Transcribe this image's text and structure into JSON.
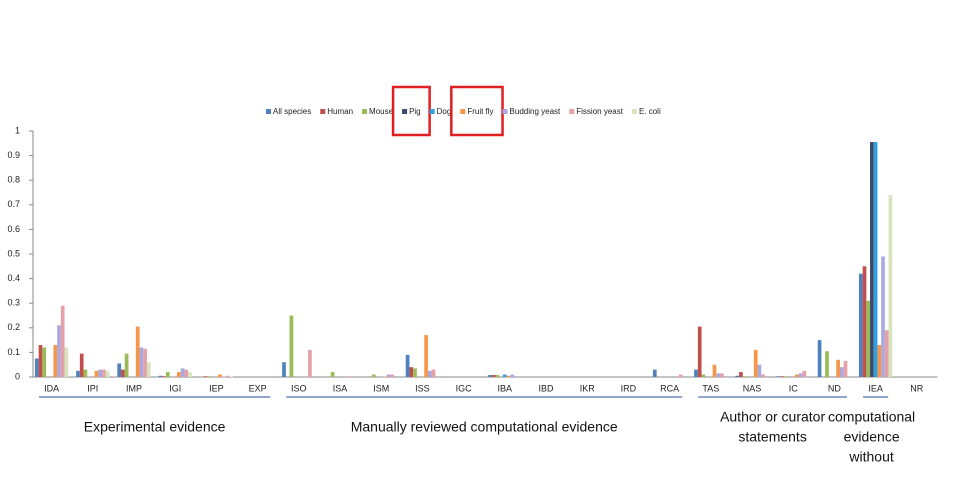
{
  "chart_data": {
    "type": "bar",
    "categories": [
      "IDA",
      "IPI",
      "IMP",
      "IGI",
      "IEP",
      "EXP",
      "ISO",
      "ISA",
      "ISM",
      "ISS",
      "IGC",
      "IBA",
      "IBD",
      "IKR",
      "IRD",
      "RCA",
      "TAS",
      "NAS",
      "IC",
      "ND",
      "IEA",
      "NR"
    ],
    "series": [
      {
        "name": "All species",
        "color": "#4f81bd",
        "values": [
          0.075,
          0.025,
          0.055,
          0.005,
          0,
          0,
          0.06,
          0,
          0,
          0.09,
          0,
          0.008,
          0,
          0,
          0,
          0.03,
          0.03,
          0.005,
          0.003,
          0.15,
          0.42,
          0
        ]
      },
      {
        "name": "Human",
        "color": "#c0504d",
        "values": [
          0.13,
          0.095,
          0.03,
          0.003,
          0.003,
          0,
          0,
          0,
          0,
          0.04,
          0,
          0.008,
          0,
          0,
          0,
          0,
          0.205,
          0.02,
          0.003,
          0,
          0.45,
          0
        ]
      },
      {
        "name": "Mouse",
        "color": "#9bbb59",
        "values": [
          0.12,
          0.03,
          0.095,
          0.02,
          0.003,
          0,
          0.25,
          0.02,
          0.01,
          0.035,
          0,
          0.008,
          0,
          0,
          0,
          0,
          0.01,
          0.003,
          0.003,
          0.105,
          0.31,
          0
        ]
      },
      {
        "name": "Pig",
        "color": "#3b4a6b",
        "highlight": true,
        "values": [
          0,
          0,
          0,
          0,
          0,
          0,
          0,
          0,
          0,
          0,
          0,
          0,
          0,
          0,
          0,
          0,
          0,
          0,
          0,
          0,
          0.955,
          0
        ]
      },
      {
        "name": "Dog",
        "color": "#2f9fe0",
        "values": [
          0,
          0,
          0,
          0,
          0,
          0,
          0,
          0,
          0,
          0,
          0,
          0.01,
          0,
          0,
          0,
          0,
          0,
          0,
          0,
          0,
          0.955,
          0
        ]
      },
      {
        "name": "Fruit fly",
        "color": "#f79646",
        "highlight": true,
        "values": [
          0.13,
          0.025,
          0.205,
          0.02,
          0.01,
          0,
          0,
          0,
          0.002,
          0.17,
          0,
          0.005,
          0,
          0,
          0,
          0,
          0.05,
          0.11,
          0.01,
          0.07,
          0.13,
          0
        ]
      },
      {
        "name": "Budding yeast",
        "color": "#a9a9e0",
        "values": [
          0.21,
          0.03,
          0.12,
          0.035,
          0.002,
          0,
          0,
          0,
          0.01,
          0.025,
          0,
          0.01,
          0,
          0,
          0,
          0,
          0.015,
          0.05,
          0.015,
          0.04,
          0.49,
          0
        ]
      },
      {
        "name": "Fission yeast",
        "color": "#e6a0a8",
        "values": [
          0.29,
          0.03,
          0.115,
          0.03,
          0.005,
          0,
          0.11,
          0.003,
          0.01,
          0.03,
          0,
          0,
          0,
          0,
          0,
          0.01,
          0.015,
          0.01,
          0.025,
          0.065,
          0.19,
          0
        ]
      },
      {
        "name": "E. coli",
        "color": "#d7e4bd",
        "values": [
          0.12,
          0.025,
          0.06,
          0.02,
          0.002,
          0,
          0,
          0,
          0,
          0,
          0,
          0,
          0,
          0,
          0,
          0,
          0,
          0,
          0,
          0,
          0.74,
          0
        ]
      }
    ],
    "ylim": [
      0,
      1
    ],
    "yticks": [
      0,
      0.1,
      0.2,
      0.3,
      0.4,
      0.5,
      0.6,
      0.7,
      0.8,
      0.9,
      1
    ],
    "groups": [
      {
        "lines": [
          "Experimental evidence"
        ],
        "count": 6
      },
      {
        "lines": [
          "Manually reviewed computational evidence"
        ],
        "count": 10
      },
      {
        "lines": [
          "Author or curator",
          "statements"
        ],
        "count": 4
      },
      {
        "lines": [
          "computational",
          "evidence",
          "without"
        ],
        "count": 1
      }
    ]
  }
}
